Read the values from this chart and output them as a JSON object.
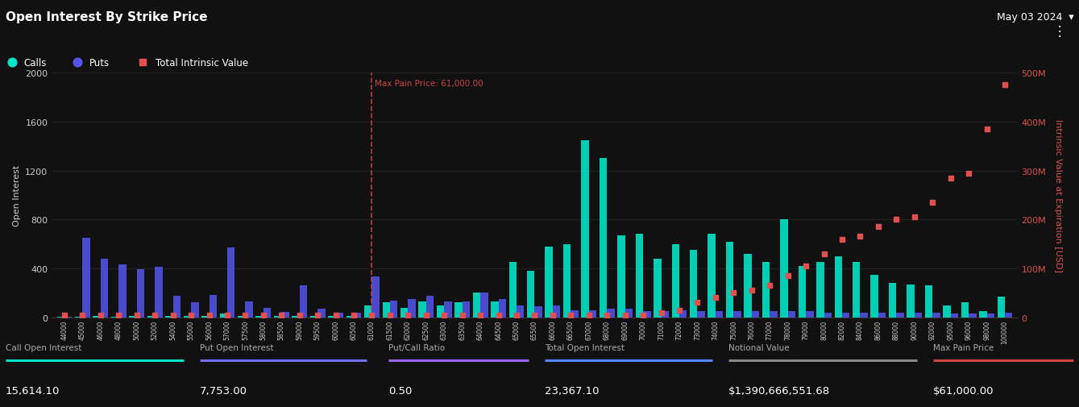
{
  "title": "Open Interest By Strike Price",
  "date": "May 03 2024",
  "background_color": "#111111",
  "text_color": "#cccccc",
  "max_pain_price": 61000,
  "strikes": [
    44000,
    45000,
    46000,
    48000,
    50000,
    52000,
    54000,
    55000,
    56000,
    57000,
    57500,
    58000,
    58500,
    59000,
    59500,
    60000,
    60500,
    61000,
    61500,
    62000,
    62500,
    63000,
    63500,
    64000,
    64500,
    65000,
    65500,
    66000,
    66500,
    67000,
    68000,
    69000,
    70000,
    71000,
    72000,
    73000,
    74000,
    75000,
    76000,
    77000,
    78000,
    79000,
    80000,
    82000,
    84000,
    86000,
    88000,
    90000,
    92000,
    95000,
    96000,
    98000,
    100000
  ],
  "calls": [
    5,
    5,
    10,
    5,
    10,
    10,
    10,
    10,
    10,
    30,
    10,
    10,
    10,
    10,
    10,
    10,
    10,
    100,
    120,
    80,
    130,
    100,
    120,
    200,
    130,
    450,
    380,
    580,
    600,
    1450,
    1300,
    670,
    680,
    480,
    600,
    550,
    680,
    620,
    520,
    450,
    800,
    420,
    450,
    500,
    450,
    350,
    280,
    270,
    260,
    100,
    120,
    50,
    170
  ],
  "puts": [
    5,
    650,
    480,
    430,
    395,
    410,
    175,
    120,
    185,
    570,
    130,
    80,
    45,
    260,
    70,
    35,
    35,
    335,
    135,
    150,
    175,
    130,
    130,
    200,
    150,
    100,
    90,
    100,
    60,
    60,
    70,
    70,
    50,
    50,
    60,
    50,
    50,
    50,
    50,
    50,
    50,
    50,
    40,
    40,
    40,
    40,
    40,
    40,
    40,
    30,
    30,
    30,
    40
  ],
  "intrinsic_values": [
    5,
    5,
    5,
    5,
    5,
    5,
    5,
    5,
    5,
    5,
    5,
    5,
    5,
    5,
    5,
    5,
    5,
    5,
    5,
    5,
    5,
    5,
    5,
    5,
    5,
    5,
    5,
    5,
    5,
    5,
    5,
    5,
    5,
    10,
    15,
    30,
    40,
    50,
    55,
    65,
    85,
    105,
    130,
    160,
    165,
    185,
    200,
    205,
    235,
    285,
    295,
    385,
    475
  ],
  "ylim_left": [
    0,
    2000
  ],
  "ylim_right": [
    0,
    500
  ],
  "ylabel_left": "Open Interest",
  "ylabel_right": "Intrinsic Value at Expiration [USD]",
  "footer_labels": [
    "Call Open Interest",
    "Put Open Interest",
    "Put/Call Ratio",
    "Total Open Interest",
    "Notional Value",
    "Max Pain Price"
  ],
  "footer_values": [
    "15,614.10",
    "7,753.00",
    "0.50",
    "23,367.10",
    "$1,390,666,551.68",
    "$61,000.00"
  ],
  "footer_underline_colors": [
    "#00e5c8",
    "#7070ee",
    "#9966ee",
    "#5588ff",
    "#888888",
    "#cc4444"
  ],
  "call_color": "#00e5c8",
  "put_color": "#5555ee",
  "intrinsic_color": "#e05050",
  "max_pain_color": "#cc4444",
  "grid_color": "#2a2a2a"
}
